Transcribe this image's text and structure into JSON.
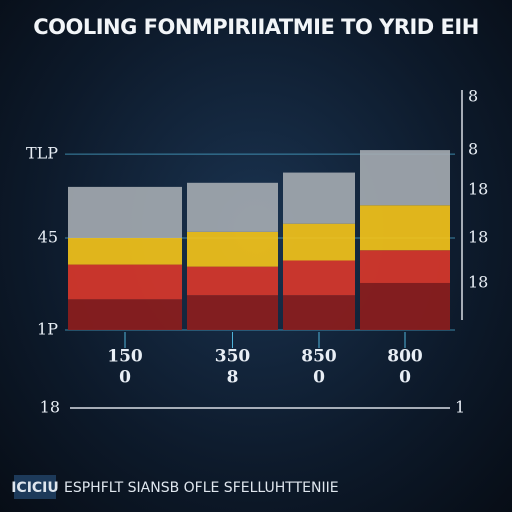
{
  "chart_data": {
    "type": "stacked-bar",
    "title": "COOLING FONMPIRIIATMIE TO YRID EIH",
    "categories": [
      "150",
      "350",
      "850",
      "800"
    ],
    "category_sublabels": [
      "0",
      "8",
      "0",
      "0"
    ],
    "series": [
      {
        "color": "#8c1d1d",
        "values": [
          15,
          17,
          17,
          23
        ]
      },
      {
        "color": "#d8372b",
        "values": [
          17,
          14,
          17,
          16
        ]
      },
      {
        "color": "#f2c21a",
        "values": [
          13,
          17,
          18,
          22
        ]
      },
      {
        "color": "#a3a9b0",
        "values": [
          25,
          24,
          25,
          27
        ]
      }
    ],
    "ylim": [
      0,
      90
    ],
    "yticks": [
      {
        "value": 0,
        "label": "1P"
      },
      45,
      {
        "value": 86,
        "label": "TLP"
      }
    ],
    "grid": true,
    "right_labels": [
      "8",
      "8",
      "18",
      "18",
      "18"
    ],
    "bottom_axis_labels": [
      "18",
      "1"
    ],
    "footer_logo": "ICICIU",
    "footer_text": "ESPHFLT SIANSB OFLE SFELLUHTTENIIE"
  }
}
